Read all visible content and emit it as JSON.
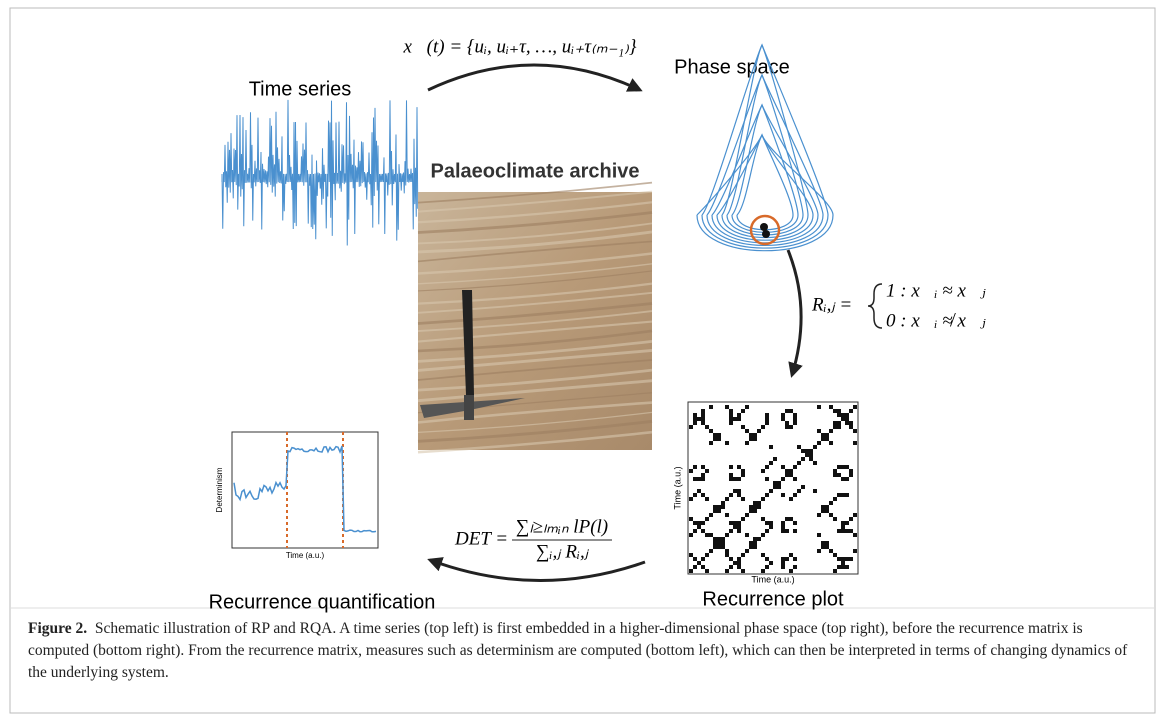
{
  "figure": {
    "labels": {
      "time_series": "Time series",
      "phase_space": "Phase space",
      "archive": "Palaeoclimate archive",
      "recurrence_plot": "Recurrence plot",
      "quantification": "Recurrence quantification"
    },
    "formulas": {
      "embedding": "x⃗(t) = {uᵢ, uᵢ₊τ, …, uᵢ₊τ₍ₘ₋₁₎}",
      "recurrence_lhs": "Rᵢ,ⱼ =",
      "recurrence_case1": "1 : x⃗ᵢ ≈ x⃗ⱼ",
      "recurrence_case0": "0 : x⃗ᵢ ≉ x⃗ⱼ",
      "det_lhs": "DET =",
      "det_numerator": "∑ₗ≥ₗₘᵢₙ lP(l)",
      "det_denominator": "∑ᵢ,ⱼ Rᵢ,ⱼ"
    },
    "rp_axes": {
      "x": "Time (a.u.)",
      "y": "Time (a.u.)"
    },
    "det_axes": {
      "x": "Time (a.u.)",
      "y": "Determinism"
    },
    "caption": {
      "label": "Figure 2.",
      "text": "Schematic illustration of RP and RQA. A time series (top left) is first embedded in a higher-dimensional phase space (top right), before the recurrence matrix is computed (bottom right). From the recurrence matrix, measures such as determinism are computed (bottom left), which can then be interpreted in terms of changing dynamics of the underlying system."
    }
  }
}
